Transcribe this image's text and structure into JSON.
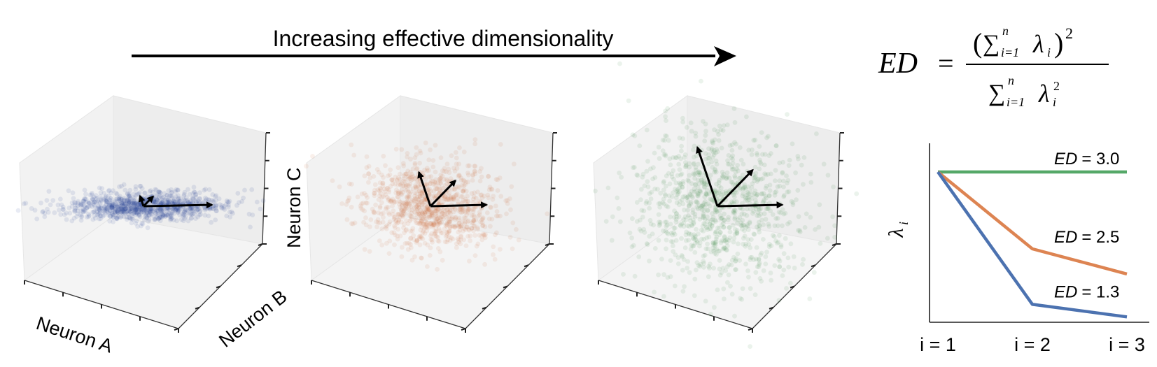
{
  "banner": {
    "text": "Increasing effective dimensionality"
  },
  "formula": {
    "lhs": "ED",
    "eq": "=",
    "numerator": {
      "open": "(",
      "sum": "∑",
      "upper": "n",
      "lower": "i=1",
      "term": "λ",
      "sub": "i",
      "close": ")",
      "power": "2"
    },
    "denominator": {
      "sum": "∑",
      "upper": "n",
      "lower": "i=1",
      "term": "λ",
      "sub": "i",
      "power": "2"
    }
  },
  "axes3d": {
    "x": "Neuron A",
    "y": "Neuron B",
    "z": "Neuron C"
  },
  "clouds": [
    {
      "color": "#1f3a93",
      "spread": [
        55,
        13,
        9
      ]
    },
    {
      "color": "#cc6a3c",
      "spread": [
        45,
        34,
        30
      ]
    },
    {
      "color": "#3a8a45",
      "spread": [
        52,
        48,
        52
      ]
    }
  ],
  "chart_data": {
    "type": "line",
    "xlabel": "",
    "ylabel": "λ_i",
    "ylabel_parts": {
      "sym": "λ",
      "sub": "i"
    },
    "x": [
      "i = 1",
      "i = 2",
      "i = 3"
    ],
    "ylim": [
      0,
      1.0
    ],
    "series": [
      {
        "name": "ED = 3.0",
        "color": "#55a868",
        "values": [
          0.84,
          0.84,
          0.84
        ]
      },
      {
        "name": "ED = 2.5",
        "color": "#dd8452",
        "values": [
          0.84,
          0.41,
          0.27
        ]
      },
      {
        "name": "ED = 1.3",
        "color": "#4c72b0",
        "values": [
          0.84,
          0.1,
          0.03
        ]
      }
    ],
    "annotations": [
      {
        "ed": "ED",
        "eq": "= 3.0"
      },
      {
        "ed": "ED",
        "eq": "= 2.5"
      },
      {
        "ed": "ED",
        "eq": "= 1.3"
      }
    ]
  }
}
